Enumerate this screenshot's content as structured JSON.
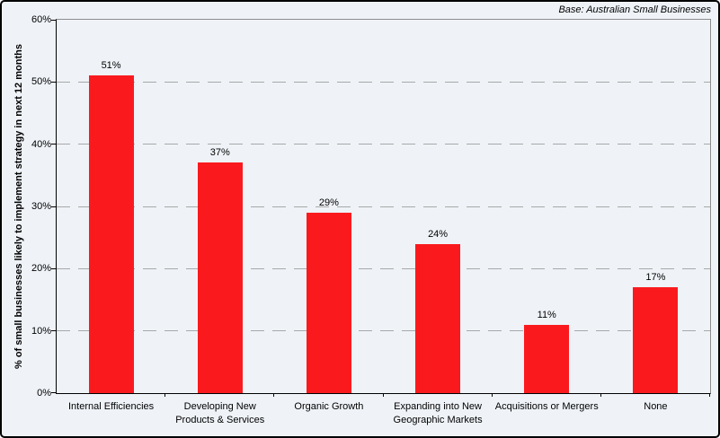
{
  "chart_data": {
    "type": "bar",
    "title": "",
    "note": "Base: Australian Small Businesses",
    "ylabel": "% of small businesses likely to implement strategy in next 12 months",
    "xlabel": "",
    "categories": [
      "Internal Efficiencies",
      "Developing New Products & Services",
      "Organic Growth",
      "Expanding into New Geographic Markets",
      "Acquisitions or Mergers",
      "None"
    ],
    "values": [
      51,
      37,
      29,
      24,
      11,
      17
    ],
    "data_labels": [
      "51%",
      "37%",
      "29%",
      "24%",
      "11%",
      "17%"
    ],
    "ylim": [
      0,
      60
    ],
    "ytick_step": 10,
    "ytick_labels": [
      "0%",
      "10%",
      "20%",
      "30%",
      "40%",
      "50%",
      "60%"
    ],
    "grid": "dashed-horizontal",
    "legend": "none",
    "colors": {
      "bar": "#FA1A1E",
      "grid": "#A8A8A8",
      "plot_border": "#8C8C8C",
      "axis": "#000000",
      "background": "#EFF3F8"
    }
  }
}
